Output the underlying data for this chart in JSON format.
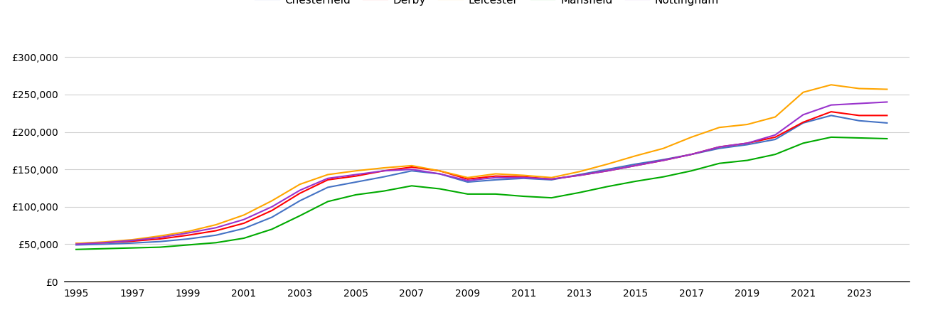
{
  "title": "",
  "years": [
    1995,
    1996,
    1997,
    1998,
    1999,
    2000,
    2001,
    2002,
    2003,
    2004,
    2005,
    2006,
    2007,
    2008,
    2009,
    2010,
    2011,
    2012,
    2013,
    2014,
    2015,
    2016,
    2017,
    2018,
    2019,
    2020,
    2021,
    2022,
    2023,
    2024
  ],
  "series": {
    "Chesterfield": [
      49000,
      50000,
      51500,
      53500,
      57000,
      62000,
      71000,
      86000,
      108000,
      126000,
      133000,
      140000,
      148000,
      144000,
      133000,
      136000,
      138000,
      136000,
      143000,
      150000,
      157000,
      163000,
      170000,
      178000,
      183000,
      190000,
      212000,
      222000,
      215000,
      212000
    ],
    "Derby": [
      51000,
      52000,
      54000,
      57000,
      62000,
      68000,
      78000,
      95000,
      118000,
      136000,
      141000,
      148000,
      153000,
      148000,
      137000,
      141000,
      140000,
      137000,
      142000,
      148000,
      155000,
      162000,
      170000,
      180000,
      185000,
      193000,
      213000,
      227000,
      222000,
      222000
    ],
    "Leicester": [
      51000,
      53000,
      56000,
      61000,
      67000,
      76000,
      89000,
      108000,
      130000,
      143000,
      148000,
      152000,
      155000,
      148000,
      139000,
      144000,
      142000,
      139000,
      147000,
      157000,
      168000,
      178000,
      193000,
      206000,
      210000,
      220000,
      253000,
      263000,
      258000,
      257000
    ],
    "Mansfield": [
      43000,
      44000,
      45000,
      46000,
      49000,
      52000,
      58000,
      70000,
      88000,
      107000,
      116000,
      121000,
      128000,
      124000,
      117000,
      117000,
      114000,
      112000,
      119000,
      127000,
      134000,
      140000,
      148000,
      158000,
      162000,
      170000,
      185000,
      193000,
      192000,
      191000
    ],
    "Nottingham": [
      50000,
      52000,
      55000,
      59000,
      65000,
      72000,
      83000,
      100000,
      122000,
      138000,
      143000,
      148000,
      150000,
      144000,
      135000,
      139000,
      139000,
      137000,
      142000,
      148000,
      155000,
      162000,
      170000,
      180000,
      185000,
      196000,
      223000,
      236000,
      238000,
      240000
    ]
  },
  "colors": {
    "Chesterfield": "#4472C4",
    "Derby": "#FF0000",
    "Leicester": "#FFA500",
    "Mansfield": "#00AA00",
    "Nottingham": "#9933CC"
  },
  "ylim": [
    0,
    325000
  ],
  "yticks": [
    0,
    50000,
    100000,
    150000,
    200000,
    250000,
    300000
  ],
  "xlim_min": 1994.6,
  "xlim_max": 2024.8,
  "xticks": [
    1995,
    1997,
    1999,
    2001,
    2003,
    2005,
    2007,
    2009,
    2011,
    2013,
    2015,
    2017,
    2019,
    2021,
    2023
  ],
  "background_color": "#ffffff",
  "grid_color": "#d0d0d0",
  "linewidth": 1.5
}
